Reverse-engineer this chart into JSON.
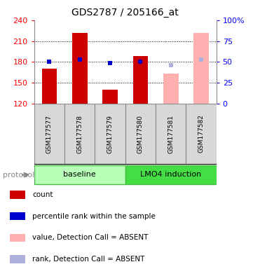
{
  "title": "GDS2787 / 205166_at",
  "samples": [
    "GSM177577",
    "GSM177578",
    "GSM177579",
    "GSM177580",
    "GSM177581",
    "GSM177582"
  ],
  "ylim_left": [
    120,
    240
  ],
  "ylim_right": [
    0,
    100
  ],
  "yticks_left": [
    120,
    150,
    180,
    210,
    240
  ],
  "yticks_right": [
    0,
    25,
    50,
    75,
    100
  ],
  "ytick_labels_right": [
    "0",
    "25",
    "50",
    "75",
    "100%"
  ],
  "hgrid_lines": [
    150,
    180,
    210
  ],
  "count_values": [
    170,
    222,
    140,
    188,
    null,
    null
  ],
  "count_color": "#cc0000",
  "percentile_values": [
    180,
    183,
    178,
    180,
    null,
    null
  ],
  "percentile_color": "#0000cc",
  "absent_value_values": [
    null,
    null,
    null,
    null,
    163,
    222
  ],
  "absent_value_color": "#ffb0b0",
  "absent_rank_values": [
    null,
    null,
    null,
    null,
    175,
    183
  ],
  "absent_rank_color": "#b0b0dd",
  "bar_width": 0.5,
  "sample_box_color": "#d8d8d8",
  "sample_box_edge": "#888888",
  "baseline_color": "#b8ffb8",
  "lmo4_color": "#44dd44",
  "protocol_text_color": "#888888",
  "legend_items": [
    {
      "label": "count",
      "color": "#cc0000"
    },
    {
      "label": "percentile rank within the sample",
      "color": "#0000cc"
    },
    {
      "label": "value, Detection Call = ABSENT",
      "color": "#ffb0b0"
    },
    {
      "label": "rank, Detection Call = ABSENT",
      "color": "#b0b0dd"
    }
  ]
}
